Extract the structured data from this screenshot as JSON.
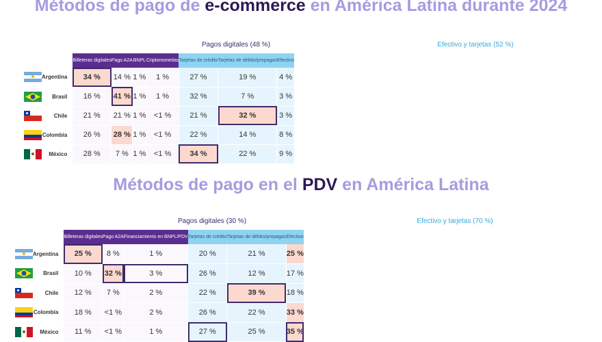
{
  "title_ecommerce": {
    "part1": "Métodos de pago de ",
    "part2": "e-commerce",
    "part3": " en América Latina durante 2024"
  },
  "title_pdv": {
    "part1": "Métodos de pago en el ",
    "part2": "PDV",
    "part3": " en América Latina"
  },
  "colors": {
    "title": "#a79be0",
    "title_emphasis": "#2a1a55",
    "digital_header": "#5b2d8e",
    "cash_header": "#8fd3f3",
    "highlight": "#fbd9cf",
    "box": "#3d2a6b"
  },
  "chart_data": [
    {
      "type": "table",
      "group_labels": {
        "digital": "Pagos digitales (48 %)",
        "cash": "Efectivo y tarjetas (52 %)"
      },
      "columns": [
        "Billeteras digitales",
        "Pago A2A",
        "BNPL",
        "Criptomonedas",
        "Tarjetas de crédito",
        "Tarjetas de débito/prepagas",
        "Efectivo"
      ],
      "digital_count": 4,
      "rows": [
        {
          "country": "Argentina",
          "flag": "ar-flag-icon",
          "values": [
            "34 %",
            "14 %",
            "1 %",
            "1 %",
            "27 %",
            "19 %",
            "4 %"
          ],
          "highlight": [
            0
          ],
          "boxed": [
            0
          ]
        },
        {
          "country": "Brasil",
          "flag": "br-flag-icon",
          "values": [
            "16 %",
            "41 %",
            "1 %",
            "1 %",
            "32 %",
            "7 %",
            "3 %"
          ],
          "highlight": [
            1
          ],
          "boxed": [
            1
          ]
        },
        {
          "country": "Chile",
          "flag": "cl-flag-icon",
          "values": [
            "21 %",
            "21 %",
            "1 %",
            "<1 %",
            "21 %",
            "32 %",
            "3 %"
          ],
          "highlight": [
            5
          ],
          "boxed": [
            5
          ]
        },
        {
          "country": "Colombia",
          "flag": "co-flag-icon",
          "values": [
            "26 %",
            "28 %",
            "1 %",
            "<1 %",
            "22 %",
            "14 %",
            "8 %"
          ],
          "highlight": [
            1
          ],
          "boxed": []
        },
        {
          "country": "México",
          "flag": "mx-flag-icon",
          "values": [
            "28 %",
            "7 %",
            "1 %",
            "<1 %",
            "34 %",
            "22 %",
            "9 %"
          ],
          "highlight": [
            4
          ],
          "boxed": [
            4
          ]
        }
      ]
    },
    {
      "type": "table",
      "group_labels": {
        "digital": "Pagos digitales (30 %)",
        "cash": "Efectivo y tarjetas (70 %)"
      },
      "columns": [
        "Billeteras digitales",
        "Pago A2A",
        "Financiamiento en BNPL/PDV",
        "Tarjetas de crédito",
        "Tarjetas de débito/prepagas",
        "Efectivo"
      ],
      "digital_count": 3,
      "rows": [
        {
          "country": "Argentina",
          "flag": "ar-flag-icon",
          "values": [
            "25 %",
            "8 %",
            "1 %",
            "20 %",
            "21 %",
            "25 %"
          ],
          "highlight": [
            0,
            5
          ],
          "boxed": [
            0
          ]
        },
        {
          "country": "Brasil",
          "flag": "br-flag-icon",
          "values": [
            "10 %",
            "32 %",
            "3 %",
            "26 %",
            "12 %",
            "17 %"
          ],
          "highlight": [
            1
          ],
          "boxed": [
            1,
            2
          ]
        },
        {
          "country": "Chile",
          "flag": "cl-flag-icon",
          "values": [
            "12 %",
            "7 %",
            "2 %",
            "22 %",
            "39 %",
            "18 %"
          ],
          "highlight": [
            4
          ],
          "boxed": [
            4
          ]
        },
        {
          "country": "Colombia",
          "flag": "co-flag-icon",
          "values": [
            "18 %",
            "<1 %",
            "2 %",
            "26 %",
            "22 %",
            "33 %"
          ],
          "highlight": [
            5
          ],
          "boxed": []
        },
        {
          "country": "México",
          "flag": "mx-flag-icon",
          "values": [
            "11 %",
            "<1 %",
            "1 %",
            "27 %",
            "25 %",
            "35 %"
          ],
          "highlight": [
            5
          ],
          "boxed": [
            3,
            5
          ]
        }
      ]
    }
  ]
}
